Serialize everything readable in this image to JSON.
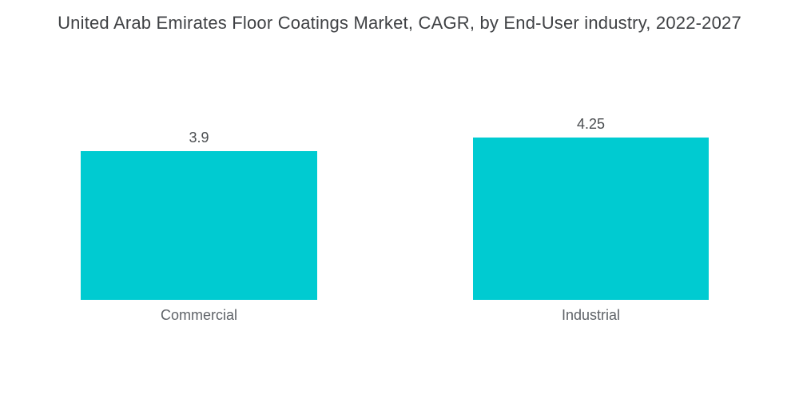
{
  "chart_data": {
    "type": "bar",
    "title": "United Arab Emirates Floor Coatings Market, CAGR, by End-User industry, 2022-2027",
    "categories": [
      "Commercial",
      "Industrial"
    ],
    "values": [
      3.9,
      4.25
    ],
    "value_labels": [
      "3.9",
      "4.25"
    ],
    "xlabel": "",
    "ylabel": "",
    "ylim": [
      0,
      4.25
    ],
    "grid": false,
    "legend": "none",
    "bar_color": "#00cbd1",
    "background_color": "#ffffff",
    "title_color": "#3f4144",
    "label_color": "#5f6368"
  }
}
